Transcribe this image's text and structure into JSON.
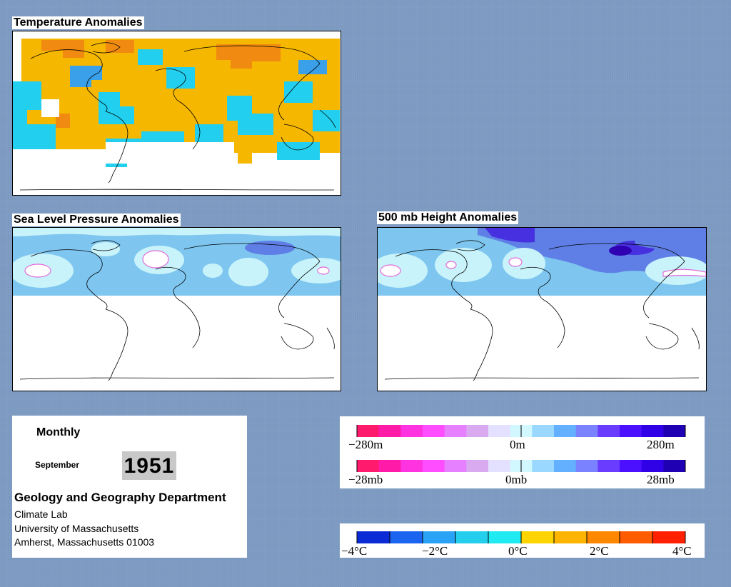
{
  "maps": {
    "temperature": {
      "title": "Temperature Anomalies"
    },
    "slp": {
      "title": "Sea Level Pressure Anomalies"
    },
    "height500": {
      "title": "500 mb Height Anomalies"
    }
  },
  "info": {
    "period": "Monthly",
    "month": "September",
    "year": "1951",
    "department": "Geology and Geography Department",
    "lines": [
      "Climate Lab",
      "University of Massachusetts",
      "Amherst, Massachusetts 01003"
    ]
  },
  "legends": {
    "height_labels": [
      "−280m",
      "0m",
      "280m"
    ],
    "pressure_labels": [
      "−28mb",
      "0mb",
      "28mb"
    ],
    "temperature_labels": [
      "−4°C",
      "−2°C",
      "0°C",
      "2°C",
      "4°C"
    ],
    "anomaly_colors": [
      "#ff1a6e",
      "#ff1aa8",
      "#ff33e0",
      "#ff4dff",
      "#e680ff",
      "#d9aaf0",
      "#e4e0ff",
      "#d2f8ff",
      "#9ad8ff",
      "#62b0ff",
      "#7a82ff",
      "#6a3cff",
      "#4a10ff",
      "#3000e6",
      "#2000b3"
    ],
    "temperature_colors": [
      "#0a2bd6",
      "#1a64f0",
      "#2aa2f5",
      "#24cfee",
      "#20eaf2",
      "#ffd400",
      "#ffb400",
      "#ff8800",
      "#ff5c00",
      "#ff2000"
    ]
  },
  "colors": {
    "background": "#7b98c0",
    "temp_warm": "#f6b700",
    "temp_warmer": "#f08a10",
    "temp_cool": "#22cfee",
    "temp_cooler": "#3aa0ea",
    "anom_neutral_pos": "#c9f3fb",
    "anom_light_blue": "#7ec6f0",
    "anom_blue": "#5f7fe6",
    "anom_dark_blue": "#4630e0",
    "anom_magenta": "#e26ad8"
  }
}
